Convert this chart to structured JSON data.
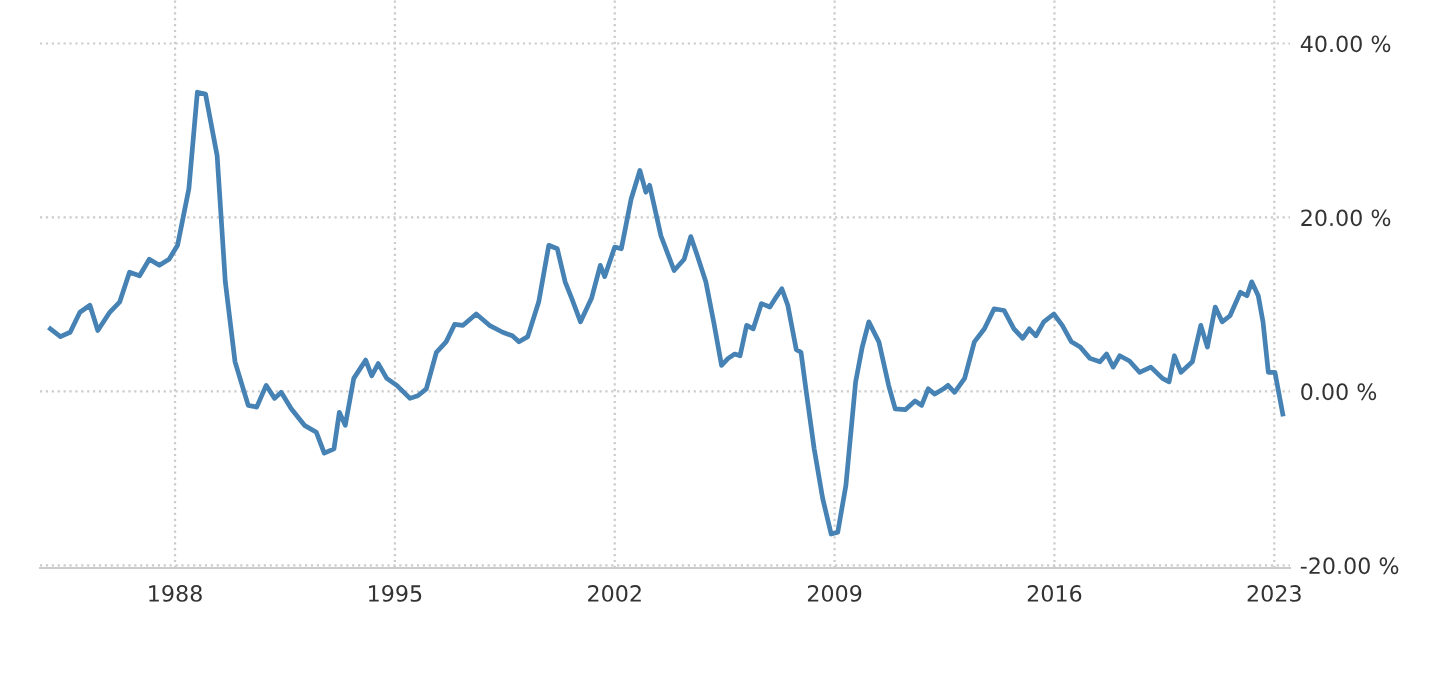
{
  "chart_data": {
    "type": "line",
    "xlim": [
      1983.7,
      2023.5
    ],
    "ylim": [
      -20.3,
      45
    ],
    "xticks": [
      1988,
      1995,
      2002,
      2009,
      2016,
      2023
    ],
    "yticks": [
      {
        "value": -20,
        "label": "-20.00 %"
      },
      {
        "value": 0,
        "label": "0.00 %"
      },
      {
        "value": 20,
        "label": "20.00 %"
      },
      {
        "value": 40,
        "label": "40.00 %"
      }
    ],
    "grid": true,
    "series": [
      {
        "color": "#4682b4",
        "x": [
          1984.03,
          1984.35,
          1984.66,
          1984.97,
          1985.29,
          1985.54,
          1985.92,
          1986.24,
          1986.55,
          1986.87,
          1987.18,
          1987.5,
          1987.81,
          1988.08,
          1988.44,
          1988.71,
          1988.97,
          1989.34,
          1989.6,
          1989.91,
          1990.33,
          1990.6,
          1990.9,
          1991.17,
          1991.38,
          1991.7,
          1992.12,
          1992.5,
          1992.75,
          1993.06,
          1993.23,
          1993.42,
          1993.69,
          1994.07,
          1994.26,
          1994.47,
          1994.74,
          1995.06,
          1995.48,
          1995.73,
          1996.0,
          1996.32,
          1996.63,
          1996.9,
          1997.17,
          1997.59,
          1998.01,
          1998.43,
          1998.74,
          1998.95,
          1999.23,
          1999.58,
          1999.9,
          2000.17,
          2000.42,
          2000.63,
          2000.91,
          2001.26,
          2001.54,
          2001.68,
          2002.0,
          2002.21,
          2002.52,
          2002.8,
          2002.99,
          2003.11,
          2003.47,
          2003.89,
          2004.21,
          2004.42,
          2004.63,
          2004.9,
          2005.15,
          2005.4,
          2005.61,
          2005.82,
          2005.99,
          2006.2,
          2006.41,
          2006.67,
          2006.94,
          2007.15,
          2007.32,
          2007.51,
          2007.78,
          2007.93,
          2008.1,
          2008.35,
          2008.62,
          2008.89,
          2009.1,
          2009.36,
          2009.67,
          2009.88,
          2010.09,
          2010.41,
          2010.72,
          2010.93,
          2011.25,
          2011.56,
          2011.77,
          2011.98,
          2012.19,
          2012.47,
          2012.61,
          2012.82,
          2013.14,
          2013.45,
          2013.77,
          2014.08,
          2014.4,
          2014.71,
          2014.99,
          2015.2,
          2015.41,
          2015.66,
          2015.98,
          2016.25,
          2016.54,
          2016.82,
          2017.13,
          2017.45,
          2017.66,
          2017.87,
          2018.08,
          2018.39,
          2018.71,
          2019.07,
          2019.44,
          2019.65,
          2019.82,
          2020.03,
          2020.39,
          2020.66,
          2020.87,
          2021.12,
          2021.34,
          2021.59,
          2021.92,
          2022.13,
          2022.28,
          2022.49,
          2022.64,
          2022.81,
          2023.02,
          2023.27
        ],
        "values": [
          7.2,
          6.3,
          6.8,
          9.1,
          9.9,
          7.0,
          9.1,
          10.3,
          13.7,
          13.3,
          15.2,
          14.5,
          15.2,
          16.8,
          23.3,
          34.4,
          34.2,
          27.1,
          12.6,
          3.4,
          -1.6,
          -1.8,
          0.7,
          -0.8,
          -0.1,
          -2.0,
          -3.9,
          -4.7,
          -7.1,
          -6.6,
          -2.4,
          -3.9,
          1.5,
          3.6,
          1.8,
          3.2,
          1.5,
          0.7,
          -0.8,
          -0.5,
          0.3,
          4.5,
          5.7,
          7.7,
          7.6,
          8.9,
          7.6,
          6.8,
          6.4,
          5.7,
          6.3,
          10.3,
          16.8,
          16.4,
          12.6,
          10.7,
          8.0,
          10.7,
          14.5,
          13.2,
          16.6,
          16.4,
          22.1,
          25.4,
          22.9,
          23.7,
          17.9,
          13.9,
          15.2,
          17.8,
          15.6,
          12.6,
          8.0,
          3.0,
          3.8,
          4.3,
          4.1,
          7.6,
          7.2,
          10.1,
          9.7,
          10.9,
          11.8,
          9.9,
          4.8,
          4.5,
          -0.1,
          -6.6,
          -12.3,
          -16.4,
          -16.2,
          -10.8,
          1.1,
          5.1,
          8.0,
          5.7,
          0.7,
          -2.0,
          -2.1,
          -1.1,
          -1.6,
          0.3,
          -0.3,
          0.3,
          0.7,
          -0.1,
          1.5,
          5.7,
          7.2,
          9.5,
          9.3,
          7.2,
          6.1,
          7.2,
          6.4,
          8.0,
          8.9,
          7.6,
          5.7,
          5.1,
          3.8,
          3.4,
          4.3,
          2.8,
          4.1,
          3.5,
          2.2,
          2.8,
          1.5,
          1.1,
          4.1,
          2.2,
          3.4,
          7.6,
          5.1,
          9.7,
          8.0,
          8.7,
          11.4,
          11.0,
          12.6,
          11.0,
          8.0,
          2.2,
          2.2,
          -2.6
        ]
      }
    ]
  }
}
